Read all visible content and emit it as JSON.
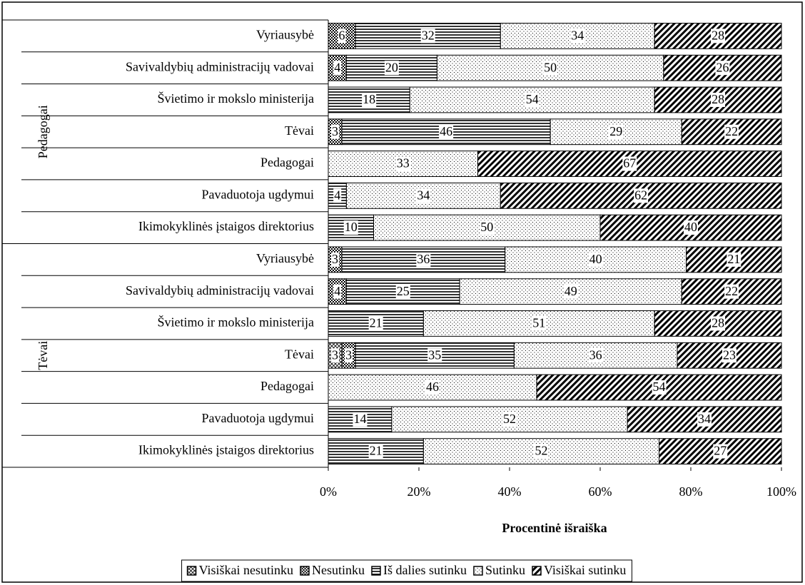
{
  "chart_data": {
    "type": "stacked_bar_horizontal",
    "groups": [
      {
        "name": "Pedagogai",
        "categories": [
          "Vyriausybė",
          "Savivaldybių administracijų vadovai",
          "Švietimo ir mokslo ministerija",
          "Tėvai",
          "Pedagogai",
          "Pavaduotoja ugdymui",
          "Ikimokyklinės įstaigos direktorius"
        ]
      },
      {
        "name": "Tėvai",
        "categories": [
          "Vyriausybė",
          "Savivaldybių administracijų vadovai",
          "Švietimo ir mokslo ministerija",
          "Tėvai",
          "Pedagogai",
          "Pavaduotoja ugdymui",
          "Ikimokyklinės įstaigos direktorius"
        ]
      }
    ],
    "series": [
      {
        "name": "Visiškai nesutinku",
        "pattern": "crosshatch",
        "color": "#000000",
        "values": [
          null,
          null,
          null,
          null,
          null,
          null,
          null,
          null,
          null,
          null,
          3,
          null,
          null,
          null
        ]
      },
      {
        "name": "Nesutinku",
        "pattern": "checker",
        "color": "#000000",
        "values": [
          6,
          4,
          null,
          3,
          null,
          null,
          null,
          3,
          4,
          null,
          3,
          null,
          null,
          null
        ]
      },
      {
        "name": "Iš dalies sutinku",
        "pattern": "hlines",
        "color": "#000000",
        "values": [
          32,
          20,
          18,
          46,
          null,
          4,
          10,
          36,
          25,
          21,
          35,
          null,
          14,
          21
        ]
      },
      {
        "name": "Sutinku",
        "pattern": "dots",
        "color": "#000000",
        "values": [
          34,
          50,
          54,
          29,
          33,
          34,
          50,
          40,
          49,
          51,
          36,
          46,
          52,
          52
        ]
      },
      {
        "name": "Visiškai sutinku",
        "pattern": "diag",
        "color": "#000000",
        "values": [
          28,
          26,
          28,
          22,
          67,
          62,
          40,
          21,
          22,
          28,
          23,
          54,
          34,
          27
        ]
      }
    ],
    "xlim": [
      0,
      100
    ],
    "xticks": [
      {
        "value": 0,
        "label": "0%"
      },
      {
        "value": 20,
        "label": "20%"
      },
      {
        "value": 40,
        "label": "40%"
      },
      {
        "value": 60,
        "label": "60%"
      },
      {
        "value": 80,
        "label": "80%"
      },
      {
        "value": 100,
        "label": "100%"
      }
    ],
    "xlabel": "Procentinė išraiška",
    "legend": "bottom"
  }
}
